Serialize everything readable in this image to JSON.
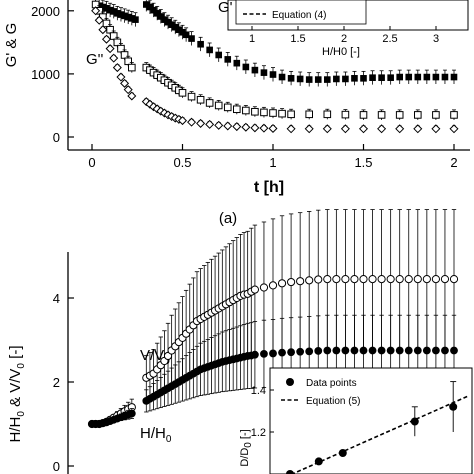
{
  "chart_data": [
    {
      "type": "scatter",
      "panel_label": "(a)",
      "xlabel": "t [h]",
      "ylabel_visible": "G' & G",
      "xlim": [
        -0.05,
        2.05
      ],
      "ylim": [
        -150,
        2200
      ],
      "xticks": [
        "0",
        "0.5",
        "1",
        "1.5",
        "2"
      ],
      "yticks": [
        "0",
        "1000",
        "2000"
      ],
      "annotations": [
        "G''"
      ],
      "series": [
        {
          "marker": "filled square",
          "x": [
            0.02,
            0.04,
            0.06,
            0.08,
            0.1,
            0.12,
            0.14,
            0.16,
            0.18,
            0.2,
            0.22,
            0.24,
            0.3,
            0.32,
            0.34,
            0.36,
            0.38,
            0.4,
            0.42,
            0.44,
            0.46,
            0.48,
            0.5,
            0.52,
            0.55,
            0.6,
            0.65,
            0.7,
            0.75,
            0.8,
            0.85,
            0.9,
            0.95,
            1.0,
            1.05,
            1.1,
            1.15,
            1.2,
            1.25,
            1.3,
            1.35,
            1.4,
            1.45,
            1.5,
            1.55,
            1.6,
            1.65,
            1.7,
            1.75,
            1.8,
            1.85,
            1.9,
            1.95,
            2.0
          ],
          "y": [
            2100,
            2080,
            2060,
            2040,
            2010,
            1990,
            1960,
            1940,
            1920,
            1900,
            1880,
            1860,
            2100,
            2060,
            2010,
            1960,
            1910,
            1860,
            1820,
            1780,
            1740,
            1700,
            1660,
            1620,
            1560,
            1470,
            1380,
            1300,
            1230,
            1170,
            1110,
            1060,
            1020,
            990,
            950,
            930,
            920,
            910,
            910,
            910,
            920,
            920,
            930,
            930,
            940,
            940,
            940,
            950,
            950,
            950,
            950,
            950,
            950,
            950
          ]
        },
        {
          "marker": "open square",
          "x": [
            0.02,
            0.04,
            0.06,
            0.08,
            0.1,
            0.12,
            0.14,
            0.16,
            0.18,
            0.2,
            0.22,
            0.3,
            0.32,
            0.34,
            0.36,
            0.38,
            0.4,
            0.42,
            0.44,
            0.46,
            0.48,
            0.5,
            0.55,
            0.6,
            0.65,
            0.7,
            0.75,
            0.8,
            0.85,
            0.9,
            0.95,
            1.0,
            1.05,
            1.1,
            1.2,
            1.3,
            1.4,
            1.5,
            1.6,
            1.7,
            1.8,
            1.9,
            2.0
          ],
          "y": [
            2100,
            2000,
            1900,
            1800,
            1700,
            1600,
            1500,
            1400,
            1300,
            1200,
            1100,
            1100,
            1060,
            1020,
            980,
            940,
            900,
            860,
            820,
            780,
            740,
            700,
            640,
            590,
            540,
            500,
            470,
            440,
            420,
            400,
            390,
            380,
            370,
            360,
            360,
            360,
            355,
            350,
            350,
            350,
            350,
            350,
            350
          ]
        },
        {
          "marker": "open diamond",
          "x": [
            0.02,
            0.04,
            0.06,
            0.08,
            0.1,
            0.12,
            0.14,
            0.16,
            0.18,
            0.2,
            0.22,
            0.3,
            0.32,
            0.34,
            0.36,
            0.38,
            0.4,
            0.42,
            0.44,
            0.46,
            0.48,
            0.5,
            0.55,
            0.6,
            0.65,
            0.7,
            0.75,
            0.8,
            0.85,
            0.9,
            0.95,
            1.0,
            1.1,
            1.2,
            1.3,
            1.4,
            1.5,
            1.6,
            1.7,
            1.8,
            1.9,
            2.0
          ],
          "y": [
            2000,
            1850,
            1700,
            1550,
            1400,
            1250,
            1100,
            950,
            850,
            750,
            650,
            560,
            520,
            480,
            445,
            410,
            380,
            350,
            325,
            300,
            280,
            260,
            235,
            215,
            200,
            185,
            175,
            165,
            155,
            145,
            140,
            135,
            130,
            130,
            130,
            130,
            130,
            130,
            130,
            130,
            130,
            130
          ]
        }
      ],
      "inset": {
        "xlabel": "H/H0 [-]",
        "xticks": [
          "1",
          "1.5",
          "2",
          "2.5",
          "3"
        ],
        "legend": [
          "Equation (4)"
        ]
      }
    },
    {
      "type": "scatter",
      "ylabel": "H/H0 & V/V0 [-]",
      "xlim": [
        -0.05,
        2.05
      ],
      "ylim": [
        -0.2,
        5.1
      ],
      "yticks": [
        "0",
        "2",
        "4"
      ],
      "annotations": [
        "V/V0",
        "H/H0"
      ],
      "series": [
        {
          "marker": "open circle",
          "x": [
            0.0,
            0.02,
            0.04,
            0.06,
            0.08,
            0.1,
            0.12,
            0.14,
            0.16,
            0.18,
            0.2,
            0.22,
            0.3,
            0.32,
            0.34,
            0.36,
            0.38,
            0.4,
            0.42,
            0.44,
            0.46,
            0.48,
            0.5,
            0.52,
            0.54,
            0.56,
            0.58,
            0.6,
            0.62,
            0.64,
            0.66,
            0.68,
            0.7,
            0.72,
            0.74,
            0.76,
            0.78,
            0.8,
            0.82,
            0.84,
            0.86,
            0.88,
            0.9,
            0.95,
            1.0,
            1.05,
            1.1,
            1.15,
            1.2,
            1.25,
            1.3,
            1.35,
            1.4,
            1.45,
            1.5,
            1.55,
            1.6,
            1.65,
            1.7,
            1.75,
            1.8,
            1.85,
            1.9,
            1.95,
            2.0
          ],
          "y": [
            1.0,
            1.0,
            1.0,
            1.02,
            1.05,
            1.1,
            1.15,
            1.2,
            1.25,
            1.3,
            1.35,
            1.4,
            2.1,
            2.15,
            2.2,
            2.3,
            2.4,
            2.5,
            2.62,
            2.75,
            2.85,
            2.95,
            3.05,
            3.15,
            3.25,
            3.35,
            3.45,
            3.5,
            3.55,
            3.6,
            3.65,
            3.7,
            3.75,
            3.8,
            3.85,
            3.9,
            3.95,
            4.0,
            4.05,
            4.08,
            4.1,
            4.15,
            4.2,
            4.25,
            4.3,
            4.35,
            4.38,
            4.4,
            4.42,
            4.44,
            4.45,
            4.45,
            4.45,
            4.45,
            4.45,
            4.45,
            4.45,
            4.45,
            4.45,
            4.45,
            4.45,
            4.45,
            4.45,
            4.45,
            4.45
          ]
        },
        {
          "marker": "filled circle",
          "x": [
            0.0,
            0.02,
            0.04,
            0.06,
            0.08,
            0.1,
            0.12,
            0.14,
            0.16,
            0.18,
            0.2,
            0.22,
            0.3,
            0.32,
            0.34,
            0.36,
            0.38,
            0.4,
            0.42,
            0.44,
            0.46,
            0.48,
            0.5,
            0.52,
            0.54,
            0.56,
            0.58,
            0.6,
            0.62,
            0.64,
            0.66,
            0.68,
            0.7,
            0.72,
            0.74,
            0.76,
            0.78,
            0.8,
            0.82,
            0.84,
            0.86,
            0.88,
            0.9,
            0.95,
            1.0,
            1.05,
            1.1,
            1.15,
            1.2,
            1.25,
            1.3,
            1.35,
            1.4,
            1.45,
            1.5,
            1.55,
            1.6,
            1.65,
            1.7,
            1.75,
            1.8,
            1.85,
            1.9,
            1.95,
            2.0
          ],
          "y": [
            1.0,
            1.0,
            1.0,
            1.02,
            1.04,
            1.07,
            1.1,
            1.13,
            1.16,
            1.19,
            1.22,
            1.25,
            1.55,
            1.6,
            1.65,
            1.7,
            1.75,
            1.8,
            1.85,
            1.9,
            1.95,
            2.0,
            2.05,
            2.1,
            2.15,
            2.2,
            2.25,
            2.3,
            2.33,
            2.36,
            2.39,
            2.42,
            2.45,
            2.48,
            2.5,
            2.52,
            2.54,
            2.56,
            2.58,
            2.6,
            2.62,
            2.63,
            2.65,
            2.67,
            2.68,
            2.7,
            2.71,
            2.72,
            2.73,
            2.74,
            2.75,
            2.75,
            2.75,
            2.75,
            2.75,
            2.75,
            2.75,
            2.75,
            2.75,
            2.75,
            2.75,
            2.75,
            2.75,
            2.75,
            2.75
          ]
        }
      ],
      "inset": {
        "ylabel": "D/D0 [-]",
        "yticks": [
          "1.2",
          "1.4"
        ],
        "legend": [
          "Data points",
          "Equation (5)"
        ],
        "points": [
          {
            "x": 1.0,
            "y": 1.0
          },
          {
            "x": 1.3,
            "y": 1.06
          },
          {
            "x": 1.55,
            "y": 1.1
          },
          {
            "x": 2.3,
            "y": 1.25
          },
          {
            "x": 2.7,
            "y": 1.32
          }
        ]
      }
    }
  ]
}
